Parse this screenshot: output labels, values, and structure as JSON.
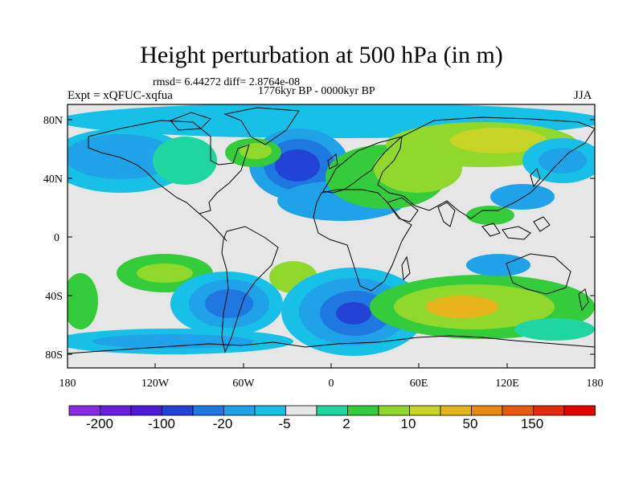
{
  "title": "Height perturbation at 500 hPa (in m)",
  "stats": "rmsd= 6.44272 diff= 2.8764e-08",
  "period": "1776kyr BP - 0000kyr BP",
  "experiment": "Expt = xQFUC-xqfua",
  "season": "JJA",
  "lat_labels": [
    "80N",
    "40N",
    "0",
    "40S",
    "80S"
  ],
  "lon_labels": [
    "180",
    "120W",
    "60W",
    "0",
    "60E",
    "120E",
    "180"
  ],
  "colorbar": {
    "colors": [
      "#8a2be2",
      "#6a1fe0",
      "#4d1bd8",
      "#2243d6",
      "#1f78e0",
      "#1fa2e8",
      "#17c0e6",
      "#e6e6e6",
      "#20d6a0",
      "#34cc3a",
      "#90d82c",
      "#c8d425",
      "#e6b41c",
      "#e68a14",
      "#e65a10",
      "#e62a0a",
      "#e60000"
    ],
    "labels": [
      "-200",
      "-100",
      "-20",
      "-5",
      "2",
      "10",
      "50",
      "150"
    ]
  },
  "palette": {
    "neutral": "#e6e6e6",
    "lightblue": "#17c0e6",
    "blue": "#1fa2e8",
    "darkblue": "#1f78e0",
    "deepblue": "#2243d6",
    "teal": "#20d6a0",
    "green": "#34cc3a",
    "yellowgreen": "#90d82c",
    "yellow": "#c8d425",
    "orange": "#e6b41c"
  }
}
